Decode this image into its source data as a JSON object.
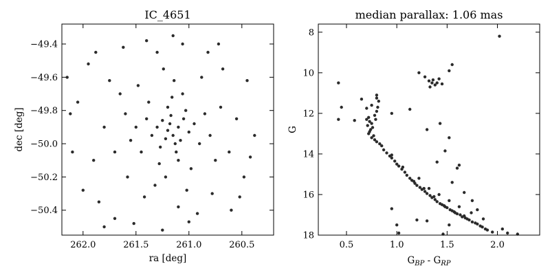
{
  "colors": {
    "point": "#2b2b2b",
    "axis": "#000000",
    "background": "#ffffff"
  },
  "chart_data": [
    {
      "type": "scatter",
      "title": "IC_4651",
      "xlabel": "ra [deg]",
      "ylabel": "dec [deg]",
      "xlim": [
        262.2,
        260.2
      ],
      "ylim": [
        -50.55,
        -49.28
      ],
      "x_inverted": true,
      "xticks": [
        262.0,
        261.5,
        261.0,
        260.5
      ],
      "xtick_labels": [
        "262.0",
        "261.5",
        "261.0",
        "260.5"
      ],
      "yticks": [
        -49.4,
        -49.6,
        -49.8,
        -50.0,
        -50.2,
        -50.4
      ],
      "ytick_labels": [
        "−49.4",
        "−49.6",
        "−49.8",
        "−50.0",
        "−50.2",
        "−50.4"
      ],
      "grid": false,
      "points": [
        [
          261.2,
          -49.92
        ],
        [
          261.18,
          -49.88
        ],
        [
          261.15,
          -49.95
        ],
        [
          261.1,
          -49.9
        ],
        [
          261.22,
          -49.97
        ],
        [
          261.05,
          -49.85
        ],
        [
          261.13,
          -50.0
        ],
        [
          261.25,
          -49.86
        ],
        [
          261.08,
          -49.98
        ],
        [
          261.17,
          -49.83
        ],
        [
          261.3,
          -49.9
        ],
        [
          261.0,
          -49.93
        ],
        [
          261.12,
          -50.05
        ],
        [
          261.27,
          -50.02
        ],
        [
          261.03,
          -49.8
        ],
        [
          261.35,
          -49.95
        ],
        [
          261.2,
          -49.78
        ],
        [
          260.95,
          -49.88
        ],
        [
          261.1,
          -50.1
        ],
        [
          261.4,
          -49.85
        ],
        [
          261.16,
          -49.72
        ],
        [
          260.9,
          -50.0
        ],
        [
          261.45,
          -50.05
        ],
        [
          261.28,
          -50.12
        ],
        [
          261.06,
          -49.7
        ],
        [
          261.5,
          -49.9
        ],
        [
          260.85,
          -49.82
        ],
        [
          261.22,
          -50.2
        ],
        [
          261.38,
          -49.75
        ],
        [
          260.98,
          -50.15
        ],
        [
          261.55,
          -49.98
        ],
        [
          261.14,
          -49.62
        ],
        [
          260.8,
          -49.95
        ],
        [
          261.32,
          -50.25
        ],
        [
          261.6,
          -49.82
        ],
        [
          261.02,
          -50.28
        ],
        [
          261.7,
          -50.05
        ],
        [
          260.75,
          -50.1
        ],
        [
          261.48,
          -49.65
        ],
        [
          261.24,
          -49.55
        ],
        [
          260.7,
          -49.78
        ],
        [
          261.8,
          -49.9
        ],
        [
          261.42,
          -50.32
        ],
        [
          260.88,
          -49.6
        ],
        [
          261.65,
          -49.7
        ],
        [
          261.1,
          -50.38
        ],
        [
          261.9,
          -50.1
        ],
        [
          260.62,
          -50.05
        ],
        [
          261.58,
          -50.2
        ],
        [
          260.92,
          -50.42
        ],
        [
          261.75,
          -49.62
        ],
        [
          261.3,
          -49.45
        ],
        [
          260.68,
          -49.55
        ],
        [
          262.05,
          -49.75
        ],
        [
          261.85,
          -50.35
        ],
        [
          260.55,
          -49.85
        ],
        [
          261.52,
          -50.48
        ],
        [
          260.78,
          -50.3
        ],
        [
          262.1,
          -50.05
        ],
        [
          261.95,
          -49.52
        ],
        [
          260.48,
          -50.2
        ],
        [
          261.4,
          -49.38
        ],
        [
          260.6,
          -50.4
        ],
        [
          261.7,
          -50.45
        ],
        [
          260.45,
          -49.62
        ],
        [
          262.12,
          -49.82
        ],
        [
          261.06,
          -49.4
        ],
        [
          261.62,
          -49.42
        ],
        [
          260.82,
          -49.45
        ],
        [
          261.25,
          -50.52
        ],
        [
          262.0,
          -50.28
        ],
        [
          260.38,
          -49.95
        ],
        [
          261.88,
          -49.45
        ],
        [
          260.52,
          -50.32
        ],
        [
          261.15,
          -49.35
        ],
        [
          260.72,
          -49.4
        ],
        [
          260.42,
          -50.08
        ],
        [
          262.15,
          -49.6
        ],
        [
          261.8,
          -50.5
        ],
        [
          261.0,
          -50.47
        ]
      ]
    },
    {
      "type": "scatter",
      "title": "median parallax: 1.06 mas",
      "xlabel": "G_BP - G_RP",
      "xlabel_parts": [
        "G",
        "BP",
        " - G",
        "RP"
      ],
      "ylabel": "G",
      "xlim": [
        0.22,
        2.42
      ],
      "ylim": [
        18.0,
        7.6
      ],
      "y_inverted": true,
      "xticks": [
        0.5,
        1.0,
        1.5,
        2.0
      ],
      "xtick_labels": [
        "0.5",
        "1.0",
        "1.5",
        "2.0"
      ],
      "yticks": [
        8,
        10,
        12,
        14,
        16,
        18
      ],
      "ytick_labels": [
        "8",
        "10",
        "12",
        "14",
        "16",
        "18"
      ],
      "grid": false,
      "points": [
        [
          0.72,
          12.2
        ],
        [
          0.73,
          12.4
        ],
        [
          0.71,
          12.6
        ],
        [
          0.74,
          12.8
        ],
        [
          0.72,
          13.0
        ],
        [
          0.75,
          12.5
        ],
        [
          0.7,
          12.3
        ],
        [
          0.76,
          12.7
        ],
        [
          0.73,
          12.9
        ],
        [
          0.78,
          12.1
        ],
        [
          0.8,
          11.9
        ],
        [
          0.79,
          12.3
        ],
        [
          0.81,
          11.7
        ],
        [
          0.77,
          13.1
        ],
        [
          0.75,
          13.2
        ],
        [
          0.78,
          13.3
        ],
        [
          0.8,
          13.4
        ],
        [
          0.83,
          13.5
        ],
        [
          0.85,
          13.6
        ],
        [
          0.87,
          13.8
        ],
        [
          0.9,
          13.95
        ],
        [
          0.93,
          14.1
        ],
        [
          0.95,
          14.2
        ],
        [
          0.98,
          14.35
        ],
        [
          1.0,
          14.5
        ],
        [
          1.02,
          14.6
        ],
        [
          1.05,
          14.75
        ],
        [
          1.08,
          14.9
        ],
        [
          1.1,
          15.05
        ],
        [
          1.13,
          15.2
        ],
        [
          1.15,
          15.3
        ],
        [
          1.18,
          15.45
        ],
        [
          1.2,
          15.55
        ],
        [
          1.23,
          15.65
        ],
        [
          1.25,
          15.75
        ],
        [
          1.28,
          15.85
        ],
        [
          1.3,
          15.95
        ],
        [
          1.33,
          16.05
        ],
        [
          1.35,
          16.15
        ],
        [
          1.38,
          16.25
        ],
        [
          1.4,
          16.35
        ],
        [
          1.43,
          16.45
        ],
        [
          1.45,
          16.5
        ],
        [
          1.48,
          16.6
        ],
        [
          1.5,
          16.65
        ],
        [
          1.53,
          16.75
        ],
        [
          1.55,
          16.8
        ],
        [
          1.58,
          16.9
        ],
        [
          1.6,
          16.95
        ],
        [
          1.63,
          17.0
        ],
        [
          1.65,
          17.1
        ],
        [
          1.68,
          17.15
        ],
        [
          1.7,
          17.2
        ],
        [
          1.72,
          17.25
        ],
        [
          1.75,
          17.35
        ],
        [
          1.78,
          17.4
        ],
        [
          1.8,
          17.45
        ],
        [
          1.83,
          17.55
        ],
        [
          1.85,
          17.6
        ],
        [
          1.88,
          17.7
        ],
        [
          1.9,
          17.75
        ],
        [
          1.95,
          17.85
        ],
        [
          2.05,
          17.7
        ],
        [
          2.1,
          17.9
        ],
        [
          2.2,
          17.95
        ],
        [
          0.95,
          14.05
        ],
        [
          1.06,
          14.65
        ],
        [
          1.17,
          15.35
        ],
        [
          1.27,
          15.7
        ],
        [
          1.37,
          16.1
        ],
        [
          1.47,
          16.55
        ],
        [
          1.57,
          16.85
        ],
        [
          1.67,
          17.05
        ],
        [
          1.22,
          15.2
        ],
        [
          1.32,
          15.7
        ],
        [
          1.42,
          16.0
        ],
        [
          1.52,
          16.3
        ],
        [
          1.62,
          16.6
        ],
        [
          1.74,
          16.9
        ],
        [
          1.86,
          17.2
        ],
        [
          2.02,
          8.2
        ],
        [
          1.55,
          9.6
        ],
        [
          1.52,
          9.9
        ],
        [
          1.22,
          10.0
        ],
        [
          1.28,
          10.2
        ],
        [
          1.32,
          10.4
        ],
        [
          1.35,
          10.5
        ],
        [
          1.38,
          10.6
        ],
        [
          1.4,
          10.5
        ],
        [
          1.42,
          10.3
        ],
        [
          1.33,
          10.7
        ],
        [
          1.36,
          10.35
        ],
        [
          1.45,
          10.55
        ],
        [
          0.42,
          10.5
        ],
        [
          0.45,
          11.7
        ],
        [
          0.42,
          12.3
        ],
        [
          0.58,
          12.35
        ],
        [
          0.65,
          11.3
        ],
        [
          0.7,
          11.75
        ],
        [
          0.75,
          11.6
        ],
        [
          0.8,
          11.25
        ],
        [
          0.82,
          11.4
        ],
        [
          0.8,
          11.1
        ],
        [
          0.95,
          12.0
        ],
        [
          1.13,
          11.8
        ],
        [
          1.3,
          12.8
        ],
        [
          1.43,
          12.5
        ],
        [
          1.52,
          13.2
        ],
        [
          1.48,
          13.85
        ],
        [
          1.4,
          14.4
        ],
        [
          1.6,
          14.7
        ],
        [
          1.62,
          14.55
        ],
        [
          1.55,
          15.4
        ],
        [
          1.67,
          15.9
        ],
        [
          1.75,
          16.3
        ],
        [
          1.8,
          16.75
        ],
        [
          1.52,
          17.5
        ],
        [
          1.3,
          17.3
        ],
        [
          1.0,
          17.5
        ],
        [
          1.02,
          17.9
        ],
        [
          1.46,
          17.95
        ],
        [
          1.2,
          17.25
        ],
        [
          0.95,
          16.7
        ]
      ]
    }
  ]
}
